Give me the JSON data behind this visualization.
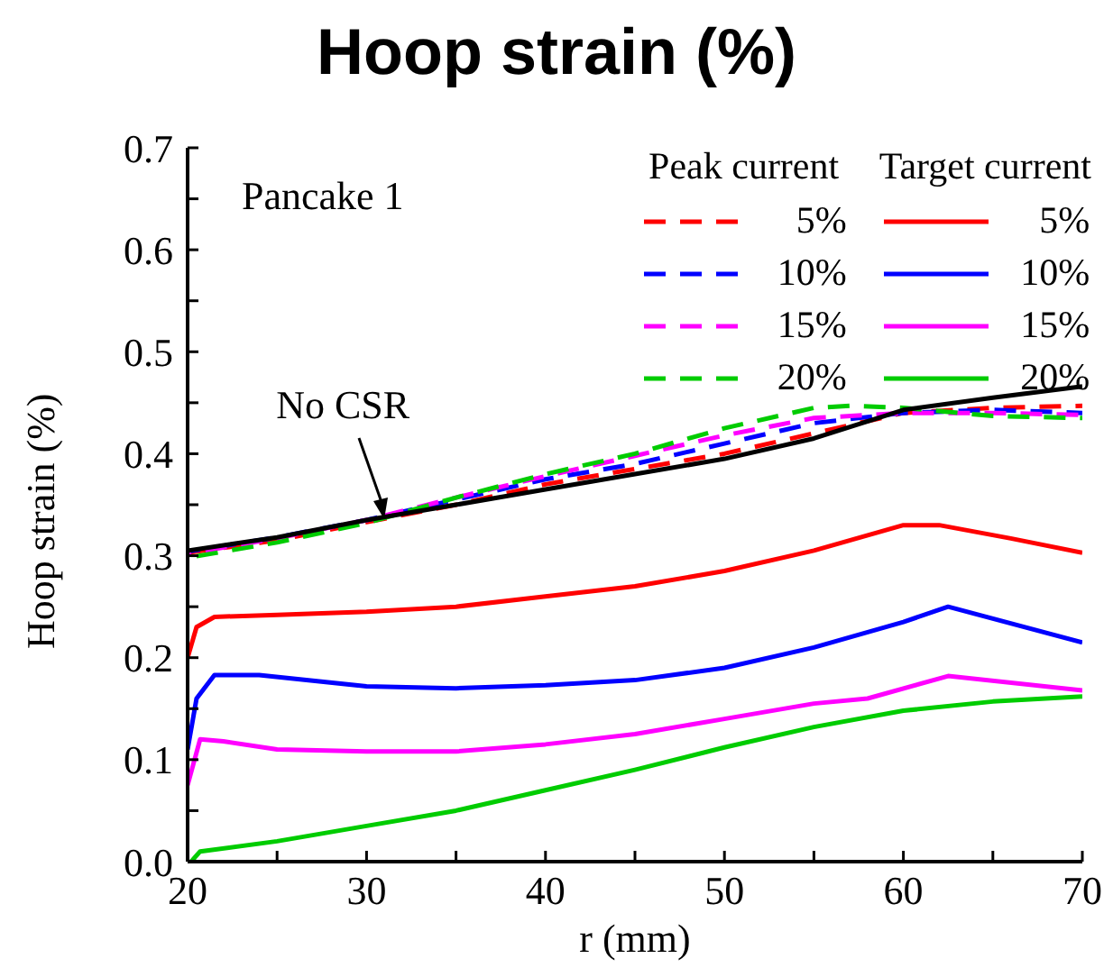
{
  "chart_data": {
    "type": "line",
    "title": "Hoop strain (%)",
    "xlabel": "r (mm)",
    "ylabel": "Hoop strain (%)",
    "xlim": [
      20,
      70
    ],
    "xticks": [
      20,
      {
        "value": 25,
        "label": null
      },
      30,
      {
        "value": 35,
        "label": null
      },
      40,
      {
        "value": 45,
        "label": null
      },
      50,
      {
        "value": 55,
        "label": null
      },
      60,
      {
        "value": 65,
        "label": null
      },
      70
    ],
    "ylim": [
      0,
      0.7
    ],
    "yticks": [
      {
        "value": 0,
        "label": "0.0"
      },
      {
        "value": 0.05,
        "label": null
      },
      0.1,
      {
        "value": 0.15,
        "label": null
      },
      0.2,
      {
        "value": 0.25,
        "label": null
      },
      0.3,
      {
        "value": 0.35,
        "label": null
      },
      0.4,
      {
        "value": 0.45,
        "label": null
      },
      0.5,
      {
        "value": 0.55,
        "label": null
      },
      0.6,
      {
        "value": 0.65,
        "label": null
      },
      0.7
    ],
    "legend": "top right",
    "marker": "none",
    "annotations": [
      "Pancake 1",
      "Peak current",
      "Target current",
      {
        "text": "No CSR",
        "x": 31,
        "y": 0.335
      }
    ],
    "series": [
      {
        "name": "5%",
        "color": "#ff0000",
        "line_style": "dashed",
        "x": [
          20,
          25,
          30,
          35,
          40,
          45,
          50,
          55,
          60,
          65,
          70
        ],
        "values": [
          0.303,
          0.315,
          0.333,
          0.35,
          0.37,
          0.385,
          0.4,
          0.42,
          0.44,
          0.445,
          0.447
        ]
      },
      {
        "name": "10%",
        "color": "#0000ff",
        "line_style": "dashed",
        "x": [
          20,
          25,
          30,
          35,
          40,
          45,
          50,
          55,
          60,
          65,
          70
        ],
        "values": [
          0.304,
          0.318,
          0.335,
          0.355,
          0.375,
          0.39,
          0.41,
          0.43,
          0.44,
          0.443,
          0.44
        ]
      },
      {
        "name": "15%",
        "color": "#ff00ff",
        "line_style": "dashed",
        "x": [
          20,
          25,
          30,
          35,
          40,
          45,
          50,
          55,
          60,
          65,
          70
        ],
        "values": [
          0.302,
          0.317,
          0.335,
          0.357,
          0.378,
          0.398,
          0.418,
          0.435,
          0.44,
          0.44,
          0.438
        ]
      },
      {
        "name": "20%",
        "color": "#00cc00",
        "line_style": "dashed",
        "x": [
          20,
          25,
          30,
          35,
          40,
          45,
          50,
          55,
          57,
          60,
          65,
          70
        ],
        "values": [
          0.298,
          0.313,
          0.332,
          0.357,
          0.38,
          0.4,
          0.425,
          0.445,
          0.447,
          0.445,
          0.437,
          0.435
        ]
      },
      {
        "name": "5%",
        "color": "#ff0000",
        "line_style": "solid",
        "x": [
          20,
          20.5,
          21.5,
          25,
          30,
          35,
          40,
          45,
          50,
          55,
          60,
          62,
          66,
          70
        ],
        "values": [
          0.2,
          0.23,
          0.24,
          0.242,
          0.245,
          0.25,
          0.26,
          0.27,
          0.285,
          0.305,
          0.33,
          0.33,
          0.317,
          0.303
        ]
      },
      {
        "name": "10%",
        "color": "#0000ff",
        "line_style": "solid",
        "x": [
          20,
          20.5,
          21.5,
          24,
          30,
          35,
          40,
          45,
          50,
          55,
          60,
          62.5,
          70
        ],
        "values": [
          0.11,
          0.16,
          0.183,
          0.183,
          0.172,
          0.17,
          0.173,
          0.178,
          0.19,
          0.21,
          0.235,
          0.25,
          0.215
        ]
      },
      {
        "name": "15%",
        "color": "#ff00ff",
        "line_style": "solid",
        "x": [
          20,
          20.7,
          22,
          25,
          30,
          35,
          40,
          45,
          50,
          55,
          58,
          62.5,
          70
        ],
        "values": [
          0.075,
          0.12,
          0.118,
          0.11,
          0.108,
          0.108,
          0.115,
          0.125,
          0.14,
          0.155,
          0.16,
          0.182,
          0.168
        ]
      },
      {
        "name": "20%",
        "color": "#00cc00",
        "line_style": "solid",
        "x": [
          20.2,
          20.7,
          25,
          30,
          35,
          40,
          45,
          50,
          55,
          60,
          65,
          70
        ],
        "values": [
          0,
          0.01,
          0.02,
          0.035,
          0.05,
          0.07,
          0.09,
          0.112,
          0.132,
          0.148,
          0.157,
          0.162
        ]
      },
      {
        "color": "#000000",
        "line_style": "solid",
        "x": [
          20,
          25,
          30,
          35,
          40,
          45,
          50,
          55,
          60,
          65,
          70
        ],
        "values": [
          0.305,
          0.318,
          0.335,
          0.35,
          0.365,
          0.38,
          0.395,
          0.415,
          0.443,
          0.455,
          0.466
        ]
      }
    ]
  }
}
